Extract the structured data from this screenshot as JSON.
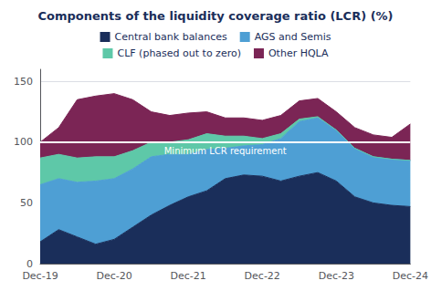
{
  "chart_data": {
    "type": "area",
    "title": "Components of the liquidity coverage ratio (LCR) (%)",
    "categories": [
      "Dec-19",
      null,
      null,
      null,
      "Dec-20",
      null,
      null,
      null,
      "Dec-21",
      null,
      null,
      null,
      "Dec-22",
      null,
      null,
      null,
      "Dec-23",
      null,
      null,
      null,
      "Dec-24"
    ],
    "series": [
      {
        "name": "Central bank balances",
        "color": "#1a2e5a",
        "values": [
          18,
          28,
          22,
          16,
          20,
          30,
          40,
          48,
          55,
          60,
          70,
          73,
          72,
          68,
          72,
          75,
          68,
          55,
          50,
          48,
          47
        ]
      },
      {
        "name": "AGS and Semis",
        "color": "#4e9fd4",
        "values": [
          47,
          42,
          45,
          52,
          50,
          48,
          48,
          42,
          35,
          34,
          25,
          24,
          26,
          35,
          45,
          45,
          42,
          40,
          38,
          38,
          38
        ]
      },
      {
        "name": "CLF (phased out to zero)",
        "color": "#5ec8a8",
        "values": [
          22,
          20,
          20,
          20,
          18,
          15,
          12,
          10,
          12,
          13,
          10,
          8,
          5,
          4,
          2,
          1,
          0,
          0,
          0,
          0,
          0
        ]
      },
      {
        "name": "Other HQLA",
        "color": "#7b2555",
        "values": [
          13,
          22,
          48,
          50,
          52,
          42,
          25,
          22,
          22,
          18,
          15,
          15,
          15,
          15,
          15,
          15,
          15,
          17,
          18,
          18,
          30
        ]
      }
    ],
    "stacked": true,
    "ylim": [
      0,
      160
    ],
    "yticks": [
      0,
      50,
      100,
      150
    ],
    "grid": true,
    "reference_line": {
      "y": 100,
      "label": "Minimum LCR requirement"
    }
  }
}
